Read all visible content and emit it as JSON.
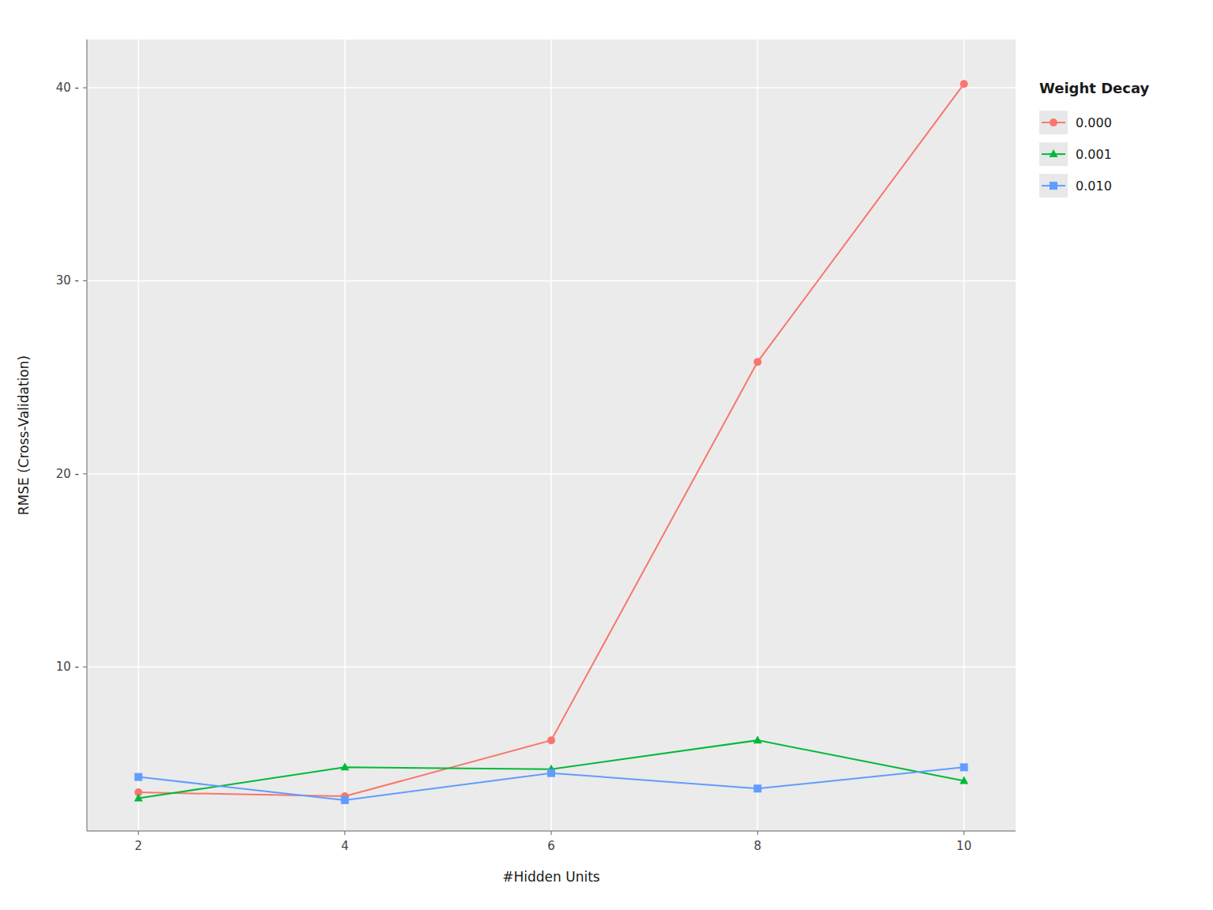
{
  "chart_data": {
    "type": "line",
    "x_label": "#Hidden Units",
    "y_label": "RMSE (Cross-Validation)",
    "legend_title": "Weight Decay",
    "x": [
      2,
      4,
      6,
      8,
      10
    ],
    "series": [
      {
        "name": "0.000",
        "color": "#F8766D",
        "marker": "circle",
        "line_style": "solid",
        "values": [
          3.5,
          3.3,
          6.2,
          25.8,
          40.2
        ]
      },
      {
        "name": "0.001",
        "color": "#00BA38",
        "marker": "triangle",
        "line_style": "solid",
        "values": [
          3.2,
          4.8,
          4.7,
          6.2,
          4.1
        ]
      },
      {
        "name": "0.010",
        "color": "#619CFF",
        "marker": "square",
        "line_style": "solid",
        "values": [
          4.3,
          3.1,
          4.5,
          3.7,
          4.8
        ]
      }
    ],
    "xlim": [
      1.5,
      10.5
    ],
    "ylim": [
      1.5,
      42.5
    ],
    "xticks": [
      2,
      4,
      6,
      8,
      10
    ],
    "yticks": [
      {
        "value": 10,
        "label": "10 -"
      },
      {
        "value": 20,
        "label": "20 -"
      },
      {
        "value": 30,
        "label": "30 -"
      },
      {
        "value": 40,
        "label": "40 -"
      }
    ],
    "grid": true,
    "legend": "right"
  }
}
